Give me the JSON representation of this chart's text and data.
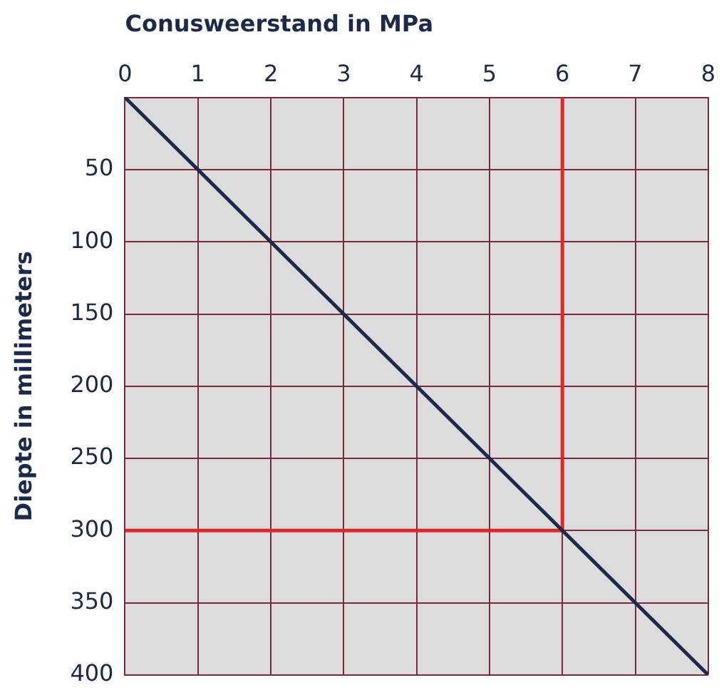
{
  "chart_data": {
    "type": "line",
    "xlabel": "Conusweerstand in MPa",
    "ylabel": "Diepte in millimeters",
    "xlim": [
      0,
      8
    ],
    "xticks": [
      0,
      1,
      2,
      3,
      4,
      5,
      6,
      7,
      8
    ],
    "ylim": [
      400,
      0
    ],
    "yticks": [
      {
        "value": 0,
        "label": null
      },
      50,
      100,
      150,
      200,
      250,
      300,
      350,
      400
    ],
    "grid": true,
    "legend": false,
    "marker": "none",
    "line_style": "solid",
    "series": [
      {
        "color": "#1b2a4a",
        "x": [
          0,
          8
        ],
        "values": [
          0,
          400
        ]
      },
      {
        "color": "#e0262b",
        "x": [
          0,
          6,
          6
        ],
        "values": [
          300,
          300,
          0
        ]
      }
    ]
  }
}
